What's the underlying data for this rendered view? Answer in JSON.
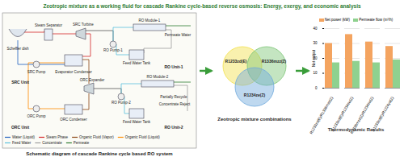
{
  "title": "Zeotropic mixture as a working fluid for cascade Rankine cycle-based reverse osmosis: Energy, exergy, and economic analysis",
  "schematic": {
    "caption": "Schematic diagram of cascade Rankine cycle based RO system",
    "components": [
      "Scheffler dish",
      "Steam Separator",
      "SRC Turbine",
      "Evaporator Condenser",
      "SRC Pump",
      "SRC Unit",
      "RO Module-1",
      "RO Pump-1",
      "Feed Water Tank",
      "RO Unit-1",
      "Permeate Water",
      "ORC Expander",
      "ORC Condenser",
      "ORC Pump",
      "ORC Unit",
      "RO Module-2",
      "RO Pump-2",
      "Feed Water Tank",
      "Partially Recycle",
      "Concentrate Reject",
      "RO Unit-2"
    ],
    "legend": [
      {
        "label": "Water (Liquid)",
        "color": "#1f5fbf"
      },
      {
        "label": "Steam Phase",
        "color": "#d62728"
      },
      {
        "label": "Organic Fluid (Vapor)",
        "color": "#8b4513"
      },
      {
        "label": "Organic Fluid (Liquid)",
        "color": "#ff8c00"
      },
      {
        "label": "Feed Water",
        "color": "#5bc0de"
      },
      {
        "label": "Concentrate",
        "color": "#9e9e9e"
      },
      {
        "label": "Permeate",
        "color": "#2e7d32"
      }
    ]
  },
  "venn": {
    "title": "Zeotropic mixture combinations",
    "sets": [
      {
        "label": "R1233zd(E)",
        "color": "#f2e14c"
      },
      {
        "label": "R1336mzz(Z)",
        "color": "#7cc576"
      },
      {
        "label": "R1234ze(Z)",
        "color": "#6fa8dc"
      }
    ]
  },
  "chart_data": {
    "type": "bar",
    "title": "Thermodynamic Results",
    "y_label": "Net output",
    "categories": [
      "R1233zd(E)/R1336mzz(Z)",
      "R1233zd(E)/R1234ze(Z)",
      "R1336mzz(Z)/R1234ze(Z)",
      "R1233zd(E)/R1224yd(Z)"
    ],
    "series": [
      {
        "name": "Net power (kW)",
        "color": "#f4a460",
        "values": [
          30,
          36,
          31,
          28
        ]
      },
      {
        "name": "Permeate flow (m³/h)",
        "color": "#8fd18f",
        "values": [
          17,
          18,
          17,
          19
        ]
      }
    ],
    "ylim": [
      0,
      40
    ],
    "yticks": [
      0,
      10,
      20,
      30,
      40
    ],
    "grid": true,
    "legend": "top"
  }
}
